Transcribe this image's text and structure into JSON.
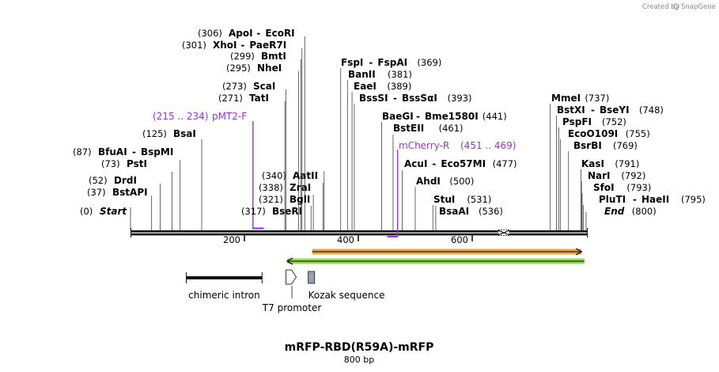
{
  "watermark": {
    "prefix": "Created by",
    "brand": "SnapGene"
  },
  "map": {
    "title": "mRFP-RBD(R59A)-mRFP",
    "length": "800 bp",
    "total_bp": 800,
    "ticks": [
      {
        "bp": 200,
        "label": "200"
      },
      {
        "bp": 400,
        "label": "400"
      },
      {
        "bp": 600,
        "label": "600"
      }
    ]
  },
  "sites": [
    {
      "pos": "(0)",
      "bp": 0,
      "names": [
        "Start"
      ],
      "italic": true
    },
    {
      "pos": "(37)",
      "bp": 37,
      "names": [
        "BstAPI"
      ]
    },
    {
      "pos": "(52)",
      "bp": 52,
      "names": [
        "DrdI"
      ]
    },
    {
      "pos": "(73)",
      "bp": 73,
      "names": [
        "PstI"
      ]
    },
    {
      "pos": "(87)",
      "bp": 87,
      "names": [
        "BfuAI",
        "BspMI"
      ]
    },
    {
      "pos": "(125)",
      "bp": 125,
      "names": [
        "BsaI"
      ]
    },
    {
      "pos": "(271)",
      "bp": 271,
      "names": [
        "TatI"
      ]
    },
    {
      "pos": "(273)",
      "bp": 273,
      "names": [
        "ScaI"
      ]
    },
    {
      "pos": "(295)",
      "bp": 295,
      "names": [
        "NheI"
      ]
    },
    {
      "pos": "(299)",
      "bp": 299,
      "names": [
        "BmtI"
      ]
    },
    {
      "pos": "(301)",
      "bp": 301,
      "names": [
        "XhoI",
        "PaeR7I"
      ]
    },
    {
      "pos": "(306)",
      "bp": 306,
      "names": [
        "ApoI",
        "EcoRI"
      ]
    },
    {
      "pos": "(317)",
      "bp": 317,
      "names": [
        "BseRI"
      ]
    },
    {
      "pos": "(321)",
      "bp": 321,
      "names": [
        "BglI"
      ]
    },
    {
      "pos": "(338)",
      "bp": 338,
      "names": [
        "ZraI"
      ]
    },
    {
      "pos": "(340)",
      "bp": 340,
      "names": [
        "AatII"
      ]
    },
    {
      "pos": "(369)",
      "bp": 369,
      "names": [
        "FspI",
        "FspAI"
      ]
    },
    {
      "pos": "(381)",
      "bp": 381,
      "names": [
        "BanII"
      ]
    },
    {
      "pos": "(389)",
      "bp": 389,
      "names": [
        "EaeI"
      ]
    },
    {
      "pos": "(393)",
      "bp": 393,
      "names": [
        "BssSI",
        "BssSαI"
      ]
    },
    {
      "pos": "(441)",
      "bp": 441,
      "names": [
        "BaeGI",
        "Bme1580I"
      ]
    },
    {
      "pos": "(461)",
      "bp": 461,
      "names": [
        "BstEII"
      ]
    },
    {
      "pos": "(477)",
      "bp": 477,
      "names": [
        "AcuI",
        "Eco57MI"
      ]
    },
    {
      "pos": "(500)",
      "bp": 500,
      "names": [
        "AhdI"
      ]
    },
    {
      "pos": "(531)",
      "bp": 531,
      "names": [
        "StuI"
      ]
    },
    {
      "pos": "(536)",
      "bp": 536,
      "names": [
        "BsaAI"
      ]
    },
    {
      "pos": "(737)",
      "bp": 737,
      "names": [
        "MmeI"
      ]
    },
    {
      "pos": "(748)",
      "bp": 748,
      "names": [
        "BstXI",
        "BseYI"
      ]
    },
    {
      "pos": "(752)",
      "bp": 752,
      "names": [
        "PspFI"
      ]
    },
    {
      "pos": "(755)",
      "bp": 755,
      "names": [
        "EcoO109I"
      ]
    },
    {
      "pos": "(769)",
      "bp": 769,
      "names": [
        "BsrBI"
      ]
    },
    {
      "pos": "(791)",
      "bp": 791,
      "names": [
        "KasI"
      ]
    },
    {
      "pos": "(792)",
      "bp": 792,
      "names": [
        "NarI"
      ]
    },
    {
      "pos": "(793)",
      "bp": 793,
      "names": [
        "SfoI"
      ]
    },
    {
      "pos": "(795)",
      "bp": 795,
      "names": [
        "PluTI",
        "HaeII"
      ]
    },
    {
      "pos": "(800)",
      "bp": 800,
      "names": [
        "End"
      ],
      "italic": true
    }
  ],
  "primers": [
    {
      "name": "pMT2-F",
      "range": "(215 .. 234)",
      "start_bp": 215,
      "end_bp": 234,
      "direction": "forward"
    },
    {
      "name": "mCherry-R",
      "range": "(451 .. 469)",
      "start_bp": 451,
      "end_bp": 469,
      "direction": "reverse"
    }
  ],
  "features": [
    {
      "name": "chimeric intron",
      "start_bp": 98,
      "end_bp": 231,
      "kind": "intron"
    },
    {
      "name": "T7 promoter",
      "start_bp": 273,
      "end_bp": 291,
      "kind": "promoter"
    },
    {
      "name": "Kozak sequence",
      "start_bp": 312,
      "end_bp": 322,
      "kind": "kozak"
    }
  ],
  "orfs": [
    {
      "start_bp": 319,
      "end_bp": 792,
      "direction": "forward",
      "color": "#e8a64a"
    },
    {
      "start_bp": 275,
      "end_bp": 797,
      "direction": "reverse",
      "color": "#8ee04a"
    }
  ],
  "colors": {
    "primer": "#9b30d9",
    "backbone": "#111111",
    "orf_forward": "#e8a64a",
    "orf_reverse": "#8ee04a",
    "kozak": "#9aa3ab"
  }
}
